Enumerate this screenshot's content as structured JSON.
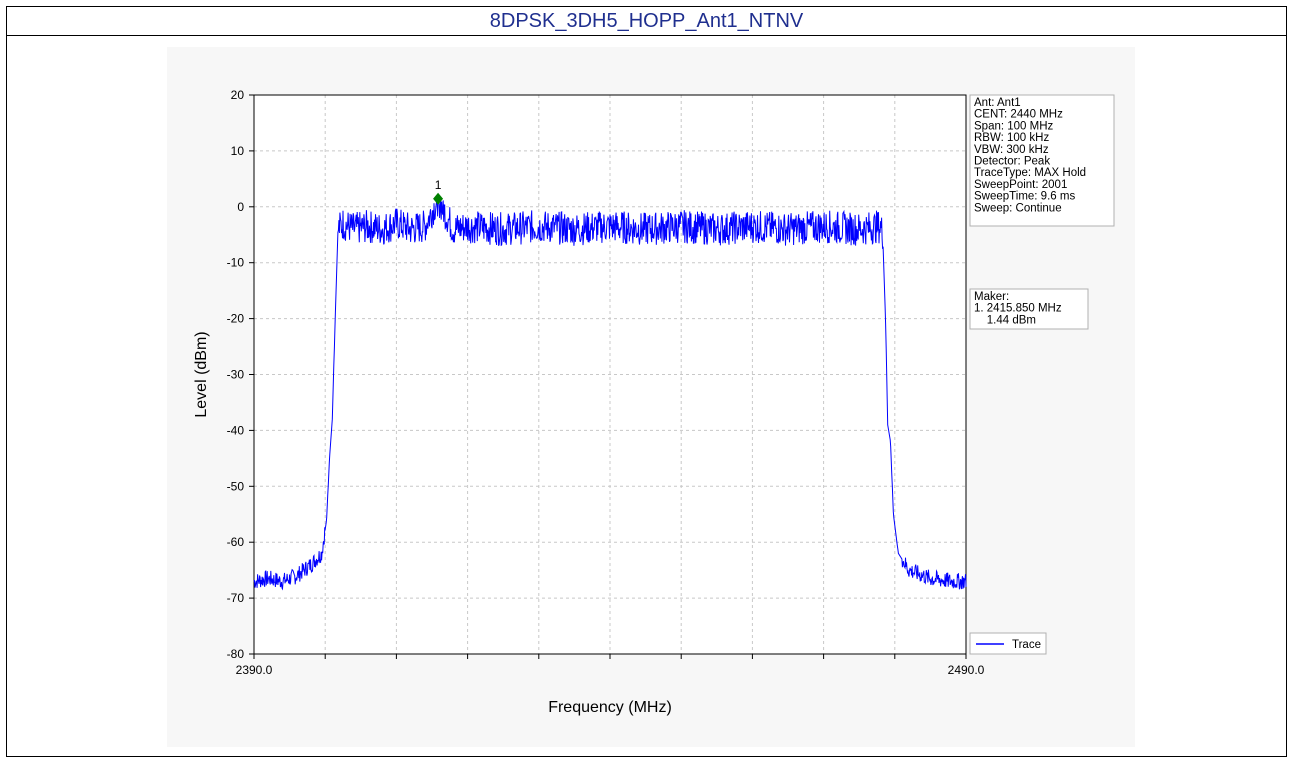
{
  "page": {
    "title": "8DPSK_3DH5_HOPP_Ant1_NTNV"
  },
  "info_box": {
    "lines": [
      "Ant: Ant1",
      "CENT: 2440 MHz",
      "Span: 100 MHz",
      "RBW: 100 kHz",
      "VBW: 300 kHz",
      "Detector: Peak",
      "TraceType: MAX Hold",
      "SweepPoint: 2001",
      "SweepTime: 9.6 ms",
      "Sweep: Continue"
    ]
  },
  "marker_box": {
    "lines": [
      "Maker:",
      "1. 2415.850 MHz",
      "    1.44 dBm"
    ]
  },
  "chart_data": {
    "type": "line",
    "title": "8DPSK_3DH5_HOPP_Ant1_NTNV",
    "xlabel": "Frequency (MHz)",
    "ylabel": "Level (dBm)",
    "xlim": [
      2390.0,
      2490.0
    ],
    "ylim": [
      -80,
      20
    ],
    "x_tick_labels": [
      "2390.0",
      "2490.0"
    ],
    "y_ticks": [
      20,
      10,
      0,
      -10,
      -20,
      -30,
      -40,
      -50,
      -60,
      -70,
      -80
    ],
    "grid": true,
    "legend_position": "bottom-right",
    "series": [
      {
        "name": "Trace",
        "color": "#0000ff",
        "points": [
          [
            2390.0,
            -67
          ],
          [
            2392.0,
            -66.5
          ],
          [
            2394.0,
            -67
          ],
          [
            2396.0,
            -66
          ],
          [
            2398.0,
            -64
          ],
          [
            2399.5,
            -62
          ],
          [
            2400.2,
            -56
          ],
          [
            2400.6,
            -45
          ],
          [
            2401.0,
            -38
          ],
          [
            2401.4,
            -20
          ],
          [
            2401.8,
            -4
          ],
          [
            2402.5,
            -3
          ],
          [
            2404.0,
            -4
          ],
          [
            2406.0,
            -3.5
          ],
          [
            2408.0,
            -4
          ],
          [
            2410.0,
            -3
          ],
          [
            2412.0,
            -4
          ],
          [
            2414.0,
            -3.5
          ],
          [
            2415.85,
            1.44
          ],
          [
            2418.0,
            -4
          ],
          [
            2420.0,
            -3.5
          ],
          [
            2425.0,
            -4
          ],
          [
            2430.0,
            -3.5
          ],
          [
            2435.0,
            -4
          ],
          [
            2440.0,
            -3.5
          ],
          [
            2445.0,
            -4
          ],
          [
            2450.0,
            -3.5
          ],
          [
            2455.0,
            -4
          ],
          [
            2460.0,
            -3.5
          ],
          [
            2465.0,
            -4
          ],
          [
            2470.0,
            -3.5
          ],
          [
            2475.0,
            -4
          ],
          [
            2478.0,
            -3.5
          ],
          [
            2478.3,
            -5
          ],
          [
            2478.7,
            -20
          ],
          [
            2479.0,
            -39
          ],
          [
            2479.4,
            -42
          ],
          [
            2479.8,
            -55
          ],
          [
            2480.5,
            -62
          ],
          [
            2482.0,
            -65
          ],
          [
            2485.0,
            -66.5
          ],
          [
            2488.0,
            -67
          ],
          [
            2490.0,
            -67
          ]
        ]
      }
    ],
    "markers": [
      {
        "label": "1",
        "x": 2415.85,
        "y": 1.44,
        "color": "#008000"
      }
    ]
  }
}
